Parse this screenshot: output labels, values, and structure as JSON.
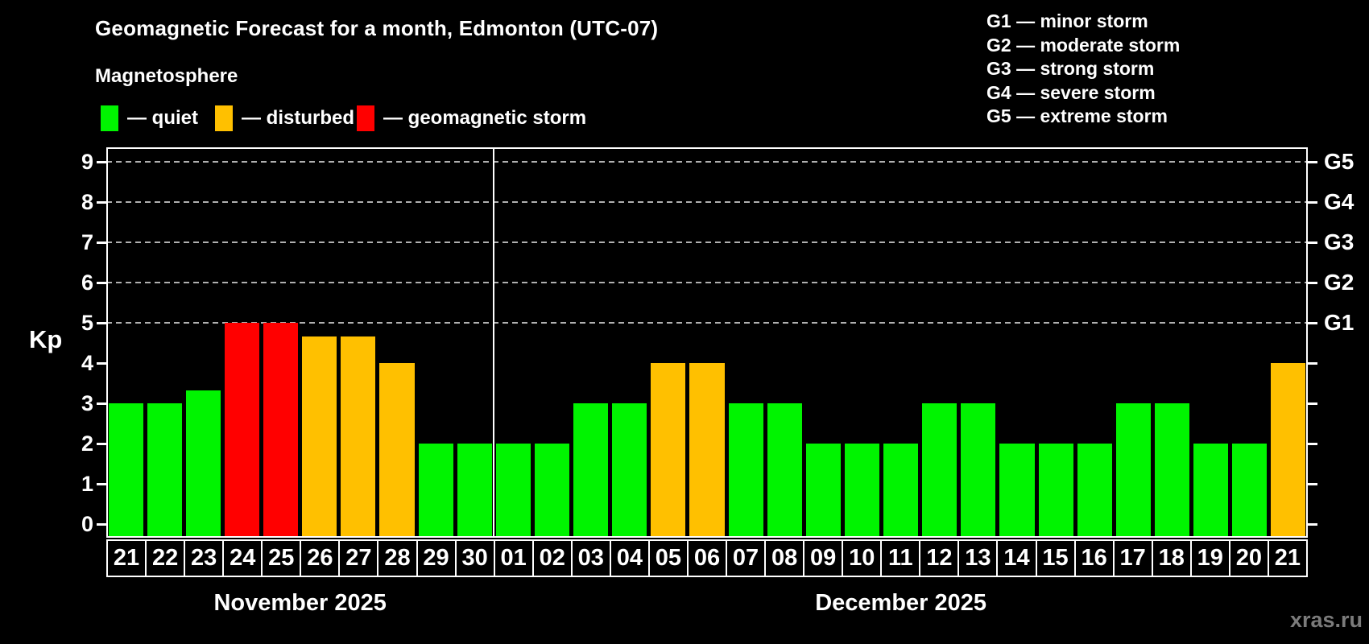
{
  "title": "Geomagnetic Forecast for a month, Edmonton (UTC-07)",
  "subtitle": "Magnetosphere",
  "legend": {
    "items": [
      {
        "key": "quiet",
        "label": "— quiet",
        "color": "#00f400"
      },
      {
        "key": "disturbed",
        "label": "— disturbed",
        "color": "#ffc000"
      },
      {
        "key": "storm",
        "label": "— geomagnetic storm",
        "color": "#ff0000"
      }
    ]
  },
  "g_scale_legend": [
    "G1 — minor storm",
    "G2 — moderate storm",
    "G3 — strong storm",
    "G4 — severe storm",
    "G5 — extreme storm"
  ],
  "y_axis": {
    "label": "Kp",
    "ticks": [
      0,
      1,
      2,
      3,
      4,
      5,
      6,
      7,
      8,
      9
    ]
  },
  "right_axis": {
    "labels": [
      {
        "kp": 5,
        "label": "G1"
      },
      {
        "kp": 6,
        "label": "G2"
      },
      {
        "kp": 7,
        "label": "G3"
      },
      {
        "kp": 8,
        "label": "G4"
      },
      {
        "kp": 9,
        "label": "G5"
      }
    ]
  },
  "watermark": "xras.ru",
  "chart_data": {
    "type": "bar",
    "title": "Geomagnetic Forecast for a month, Edmonton (UTC-07)",
    "xlabel": "",
    "ylabel": "Kp",
    "ylim": [
      0,
      9
    ],
    "grid_levels": [
      5,
      6,
      7,
      8,
      9
    ],
    "grid_style": "dashed",
    "legend_position": "top-left",
    "months": [
      {
        "label": "November 2025",
        "days": 10
      },
      {
        "label": "December 2025",
        "days": 21
      }
    ],
    "categories": [
      "21",
      "22",
      "23",
      "24",
      "25",
      "26",
      "27",
      "28",
      "29",
      "30",
      "01",
      "02",
      "03",
      "04",
      "05",
      "06",
      "07",
      "08",
      "09",
      "10",
      "11",
      "12",
      "13",
      "14",
      "15",
      "16",
      "17",
      "18",
      "19",
      "20",
      "21"
    ],
    "values": [
      3,
      3,
      3.33,
      5,
      5,
      4.67,
      4.67,
      4,
      2,
      2,
      2,
      2,
      3,
      3,
      4,
      4,
      3,
      3,
      2,
      2,
      2,
      3,
      3,
      2,
      2,
      2,
      3,
      3,
      2,
      2,
      4
    ],
    "statuses": [
      "quiet",
      "quiet",
      "quiet",
      "storm",
      "storm",
      "disturbed",
      "disturbed",
      "disturbed",
      "quiet",
      "quiet",
      "quiet",
      "quiet",
      "quiet",
      "quiet",
      "disturbed",
      "disturbed",
      "quiet",
      "quiet",
      "quiet",
      "quiet",
      "quiet",
      "quiet",
      "quiet",
      "quiet",
      "quiet",
      "quiet",
      "quiet",
      "quiet",
      "quiet",
      "quiet",
      "disturbed"
    ]
  }
}
